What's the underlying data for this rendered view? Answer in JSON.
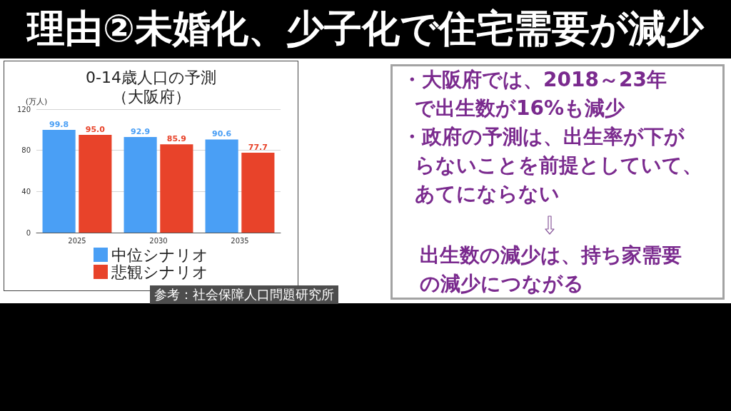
{
  "chart_data": {
    "type": "bar",
    "title": "0-14歳人口の予測（大阪府）",
    "ylabel": "(万人)",
    "categories": [
      "2025",
      "2030",
      "2035"
    ],
    "series": [
      {
        "name": "中位シナリオ",
        "color": "#4a9ff5",
        "values": [
          99.8,
          92.9,
          90.6
        ],
        "value_labels": [
          "99.8",
          "92.9",
          "90.6"
        ]
      },
      {
        "name": "悲観シナリオ",
        "color": "#e8432a",
        "values": [
          95.0,
          85.9,
          77.7
        ],
        "value_labels": [
          "95.0",
          "85.9",
          "77.7"
        ]
      }
    ],
    "ylim": [
      0,
      120
    ],
    "yticks": [
      0,
      40,
      80,
      120
    ],
    "grid": "y",
    "legend": "bottom",
    "annotations": [
      "理由②未婚化、少子化で住宅需要が減少",
      "・大阪府では、2018～23年で出生数が16%も減少",
      "・政府の予測は、出生率が下がらないことを前提としていて、あてにならない",
      "出生数の減少は、持ち家需要の減少につながる",
      "参考：社会保障人口問題研究所"
    ]
  }
}
